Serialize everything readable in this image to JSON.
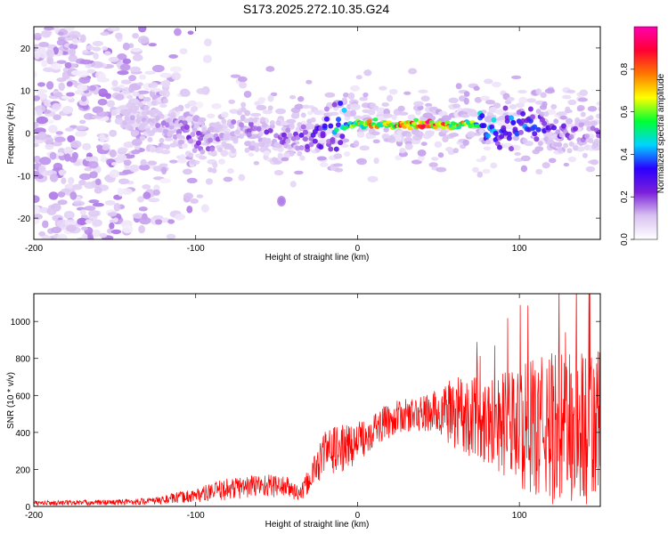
{
  "title": "S173.2025.272.10.35.G24",
  "chart_data": [
    {
      "type": "heatmap",
      "xlabel": "Height of straight line (km)",
      "ylabel": "Frequency (Hz)",
      "xlim": [
        -200,
        150
      ],
      "ylim": [
        -25,
        25
      ],
      "xticks": [
        -200,
        -100,
        0,
        100
      ],
      "yticks": [
        -20,
        -10,
        0,
        10,
        20
      ],
      "colorbar": {
        "label": "Normalized spectral amplitude",
        "range": [
          0,
          1
        ],
        "ticks": [
          "0.0",
          "0.2",
          "0.4",
          "0.6",
          "0.8"
        ],
        "colors": [
          "#ffffff",
          "#d9c2f2",
          "#7a1fd9",
          "#2b00ff",
          "#00d5ff",
          "#00ff33",
          "#ffff00",
          "#ff7700",
          "#ff0033",
          "#ff00b0"
        ]
      },
      "ridge": [
        {
          "x": -130,
          "y": 3,
          "amp": 0.15
        },
        {
          "x": -110,
          "y": 1,
          "amp": 0.25
        },
        {
          "x": -90,
          "y": -3,
          "amp": 0.25
        },
        {
          "x": -75,
          "y": 2,
          "amp": 0.2
        },
        {
          "x": -60,
          "y": 1,
          "amp": 0.25
        },
        {
          "x": -45,
          "y": -1,
          "amp": 0.25
        },
        {
          "x": -30,
          "y": -1,
          "amp": 0.3
        },
        {
          "x": -15,
          "y": 1,
          "amp": 0.5
        },
        {
          "x": 0,
          "y": 2,
          "amp": 0.7
        },
        {
          "x": 20,
          "y": 2,
          "amp": 0.9
        },
        {
          "x": 40,
          "y": 2,
          "amp": 0.95
        },
        {
          "x": 60,
          "y": 2,
          "amp": 0.9
        },
        {
          "x": 80,
          "y": 2,
          "amp": 0.5
        },
        {
          "x": 100,
          "y": 2,
          "amp": 0.45
        },
        {
          "x": 120,
          "y": 1,
          "amp": 0.3
        },
        {
          "x": 150,
          "y": 0,
          "amp": 0.2
        }
      ]
    },
    {
      "type": "line",
      "xlabel": "Height of straight line (km)",
      "ylabel": "SNR (10 * v/v)",
      "xlim": [
        -200,
        150
      ],
      "ylim": [
        0,
        1150
      ],
      "xticks": [
        -200,
        -100,
        0,
        100
      ],
      "yticks": [
        0,
        200,
        400,
        600,
        800,
        1000
      ],
      "color": "#ff0000",
      "envelope_x": [
        -200,
        -150,
        -125,
        -100,
        -80,
        -60,
        -45,
        -35,
        -25,
        -20,
        -10,
        0,
        10,
        25,
        40,
        50,
        60,
        80,
        100,
        120,
        150
      ],
      "envelope_mean": [
        18,
        22,
        30,
        60,
        95,
        115,
        110,
        65,
        220,
        300,
        310,
        345,
        420,
        485,
        500,
        510,
        505,
        470,
        430,
        420,
        420
      ],
      "envelope_amp": [
        12,
        14,
        18,
        35,
        55,
        60,
        55,
        40,
        90,
        110,
        120,
        100,
        90,
        80,
        90,
        120,
        180,
        220,
        300,
        380,
        420
      ]
    }
  ]
}
